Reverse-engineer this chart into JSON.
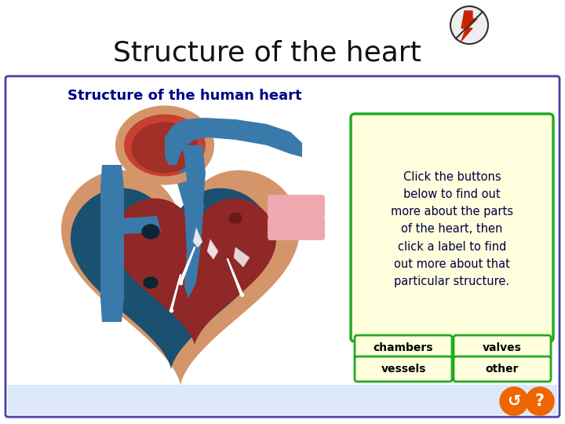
{
  "title": "Structure of the heart",
  "subtitle": "Structure of the human heart",
  "info_text": "Click the buttons\nbelow to find out\nmore about the parts\nof the heart, then\nclick a label to find\nout more about that\nparticular structure.",
  "buttons": [
    "chambers",
    "valves",
    "vessels",
    "other"
  ],
  "panel_border": "#4444aa",
  "info_box_bg": "#ffffdd",
  "info_box_border": "#22aa22",
  "btn_bg": "#ffffdd",
  "btn_border": "#22aa22",
  "title_color": "#111111",
  "subtitle_color": "#000088",
  "info_text_color": "#000044",
  "btn_text_color": "#000000",
  "heart_outer_color": "#d4956a",
  "heart_muscle_color": "#c07850",
  "heart_left_atrium_color": "#c84030",
  "heart_blue_color": "#3a7aaa",
  "heart_dark_blue_color": "#1a5070",
  "heart_red_color": "#902828",
  "heart_pink_color": "#f0a8b0",
  "bottom_strip_color": "#dde8f8",
  "flash_circle": "#eeeeee",
  "flash_color": "#cc2200",
  "icon_color": "#ee6600"
}
